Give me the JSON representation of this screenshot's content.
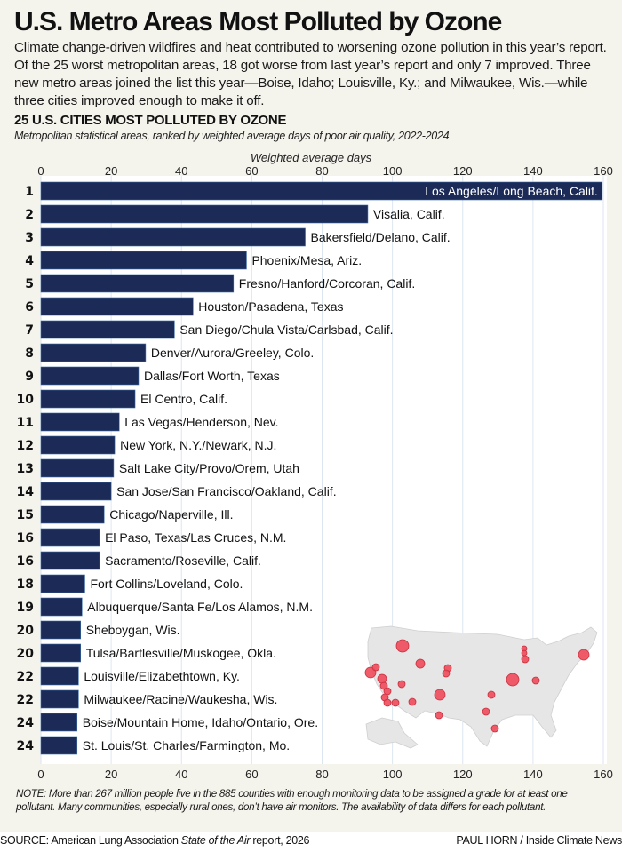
{
  "header": {
    "title": "U.S. Metro Areas Most Polluted by Ozone",
    "intro": "Climate change-driven wildfires and heat contributed to worsening ozone pollution in this year’s report. Of the 25 worst metropolitan areas, 18 got worse from last year’s report and only 7 improved. Three new metro areas joined the list this year—Boise, Idaho; Louisville, Ky.; and Milwaukee, Wis.—while three cities improved enough to make it off."
  },
  "chart_heading": "25 U.S. CITIES MOST POLLUTED BY OZONE",
  "chart_subtitle": "Metropolitan statistical areas, ranked by weighted average days of poor air quality, 2022-2024",
  "colors": {
    "bar": "#1b2a56",
    "background": "#f4f3ec",
    "plot_background": "#ffffff",
    "gridline": "#dde6f0",
    "map_land": "#e6e6e6",
    "map_dot": "#f04a5a"
  },
  "chart_data": {
    "type": "bar",
    "orientation": "horizontal",
    "title": "25 U.S. CITIES MOST POLLUTED BY OZONE",
    "subtitle": "Metropolitan statistical areas, ranked by weighted average days of poor air quality, 2022-2024",
    "xlabel": "Weighted average days",
    "ylabel": "",
    "xlim": [
      0,
      160
    ],
    "xticks": [
      0,
      20,
      40,
      60,
      80,
      100,
      120,
      140,
      160
    ],
    "grid": true,
    "bars": [
      {
        "rank": "1",
        "label": "Los Angeles/Long Beach, Calif.",
        "value": 159.7
      },
      {
        "rank": "2",
        "label": "Visalia, Calif.",
        "value": 93.0
      },
      {
        "rank": "3",
        "label": "Bakersfield/Delano, Calif.",
        "value": 75.2
      },
      {
        "rank": "4",
        "label": "Phoenix/Mesa, Ariz.",
        "value": 58.5
      },
      {
        "rank": "5",
        "label": "Fresno/Hanford/Corcoran, Calif.",
        "value": 54.8
      },
      {
        "rank": "6",
        "label": "Houston/Pasadena, Texas",
        "value": 43.3
      },
      {
        "rank": "7",
        "label": "San Diego/Chula Vista/Carlsbad, Calif.",
        "value": 38.0
      },
      {
        "rank": "8",
        "label": "Denver/Aurora/Greeley, Colo.",
        "value": 29.8
      },
      {
        "rank": "9",
        "label": "Dallas/Fort Worth, Texas",
        "value": 27.8
      },
      {
        "rank": "10",
        "label": "El Centro, Calif.",
        "value": 26.8
      },
      {
        "rank": "11",
        "label": "Las Vegas/Henderson, Nev.",
        "value": 22.3
      },
      {
        "rank": "12",
        "label": "New York, N.Y./Newark, N.J.",
        "value": 21.0
      },
      {
        "rank": "13",
        "label": "Salt Lake City/Provo/Orem, Utah",
        "value": 20.7
      },
      {
        "rank": "14",
        "label": "San Jose/San Francisco/Oakland, Calif.",
        "value": 20.0
      },
      {
        "rank": "15",
        "label": "Chicago/Naperville, Ill.",
        "value": 18.0
      },
      {
        "rank": "16",
        "label": "El Paso, Texas/Las Cruces, N.M.",
        "value": 16.7
      },
      {
        "rank": "16",
        "label": "Sacramento/Roseville, Calif.",
        "value": 16.7
      },
      {
        "rank": "18",
        "label": "Fort Collins/Loveland, Colo.",
        "value": 12.5
      },
      {
        "rank": "19",
        "label": "Albuquerque/Santa Fe/Los Alamos, N.M.",
        "value": 11.7
      },
      {
        "rank": "20",
        "label": "Sheboygan, Wis.",
        "value": 11.3
      },
      {
        "rank": "20",
        "label": "Tulsa/Bartlesville/Muskogee, Okla.",
        "value": 11.3
      },
      {
        "rank": "22",
        "label": "Louisville/Elizabethtown, Ky.",
        "value": 10.7
      },
      {
        "rank": "22",
        "label": "Milwaukee/Racine/Waukesha, Wis.",
        "value": 10.7
      },
      {
        "rank": "24",
        "label": "Boise/Mountain Home, Idaho/Ontario, Ore.",
        "value": 10.3
      },
      {
        "rank": "24",
        "label": "St. Louis/St. Charles/Farmington, Mo.",
        "value": 10.3
      }
    ],
    "inset_map": {
      "description": "U.S. map with red dots marking the 25 metro areas",
      "marker_count": 25
    }
  },
  "footnote": "NOTE: More than 267 million people live in the 885 counties with enough monitoring data to be assigned a grade for at least one pollutant. Many communities, especially rural ones, don’t have air monitors. The availability of data differs for each pollutant.",
  "source": {
    "prefix": "SOURCE: American Lung Association ",
    "italic": "State of the Air",
    "suffix": " report, 2026"
  },
  "credit": "PAUL HORN / Inside Climate News"
}
